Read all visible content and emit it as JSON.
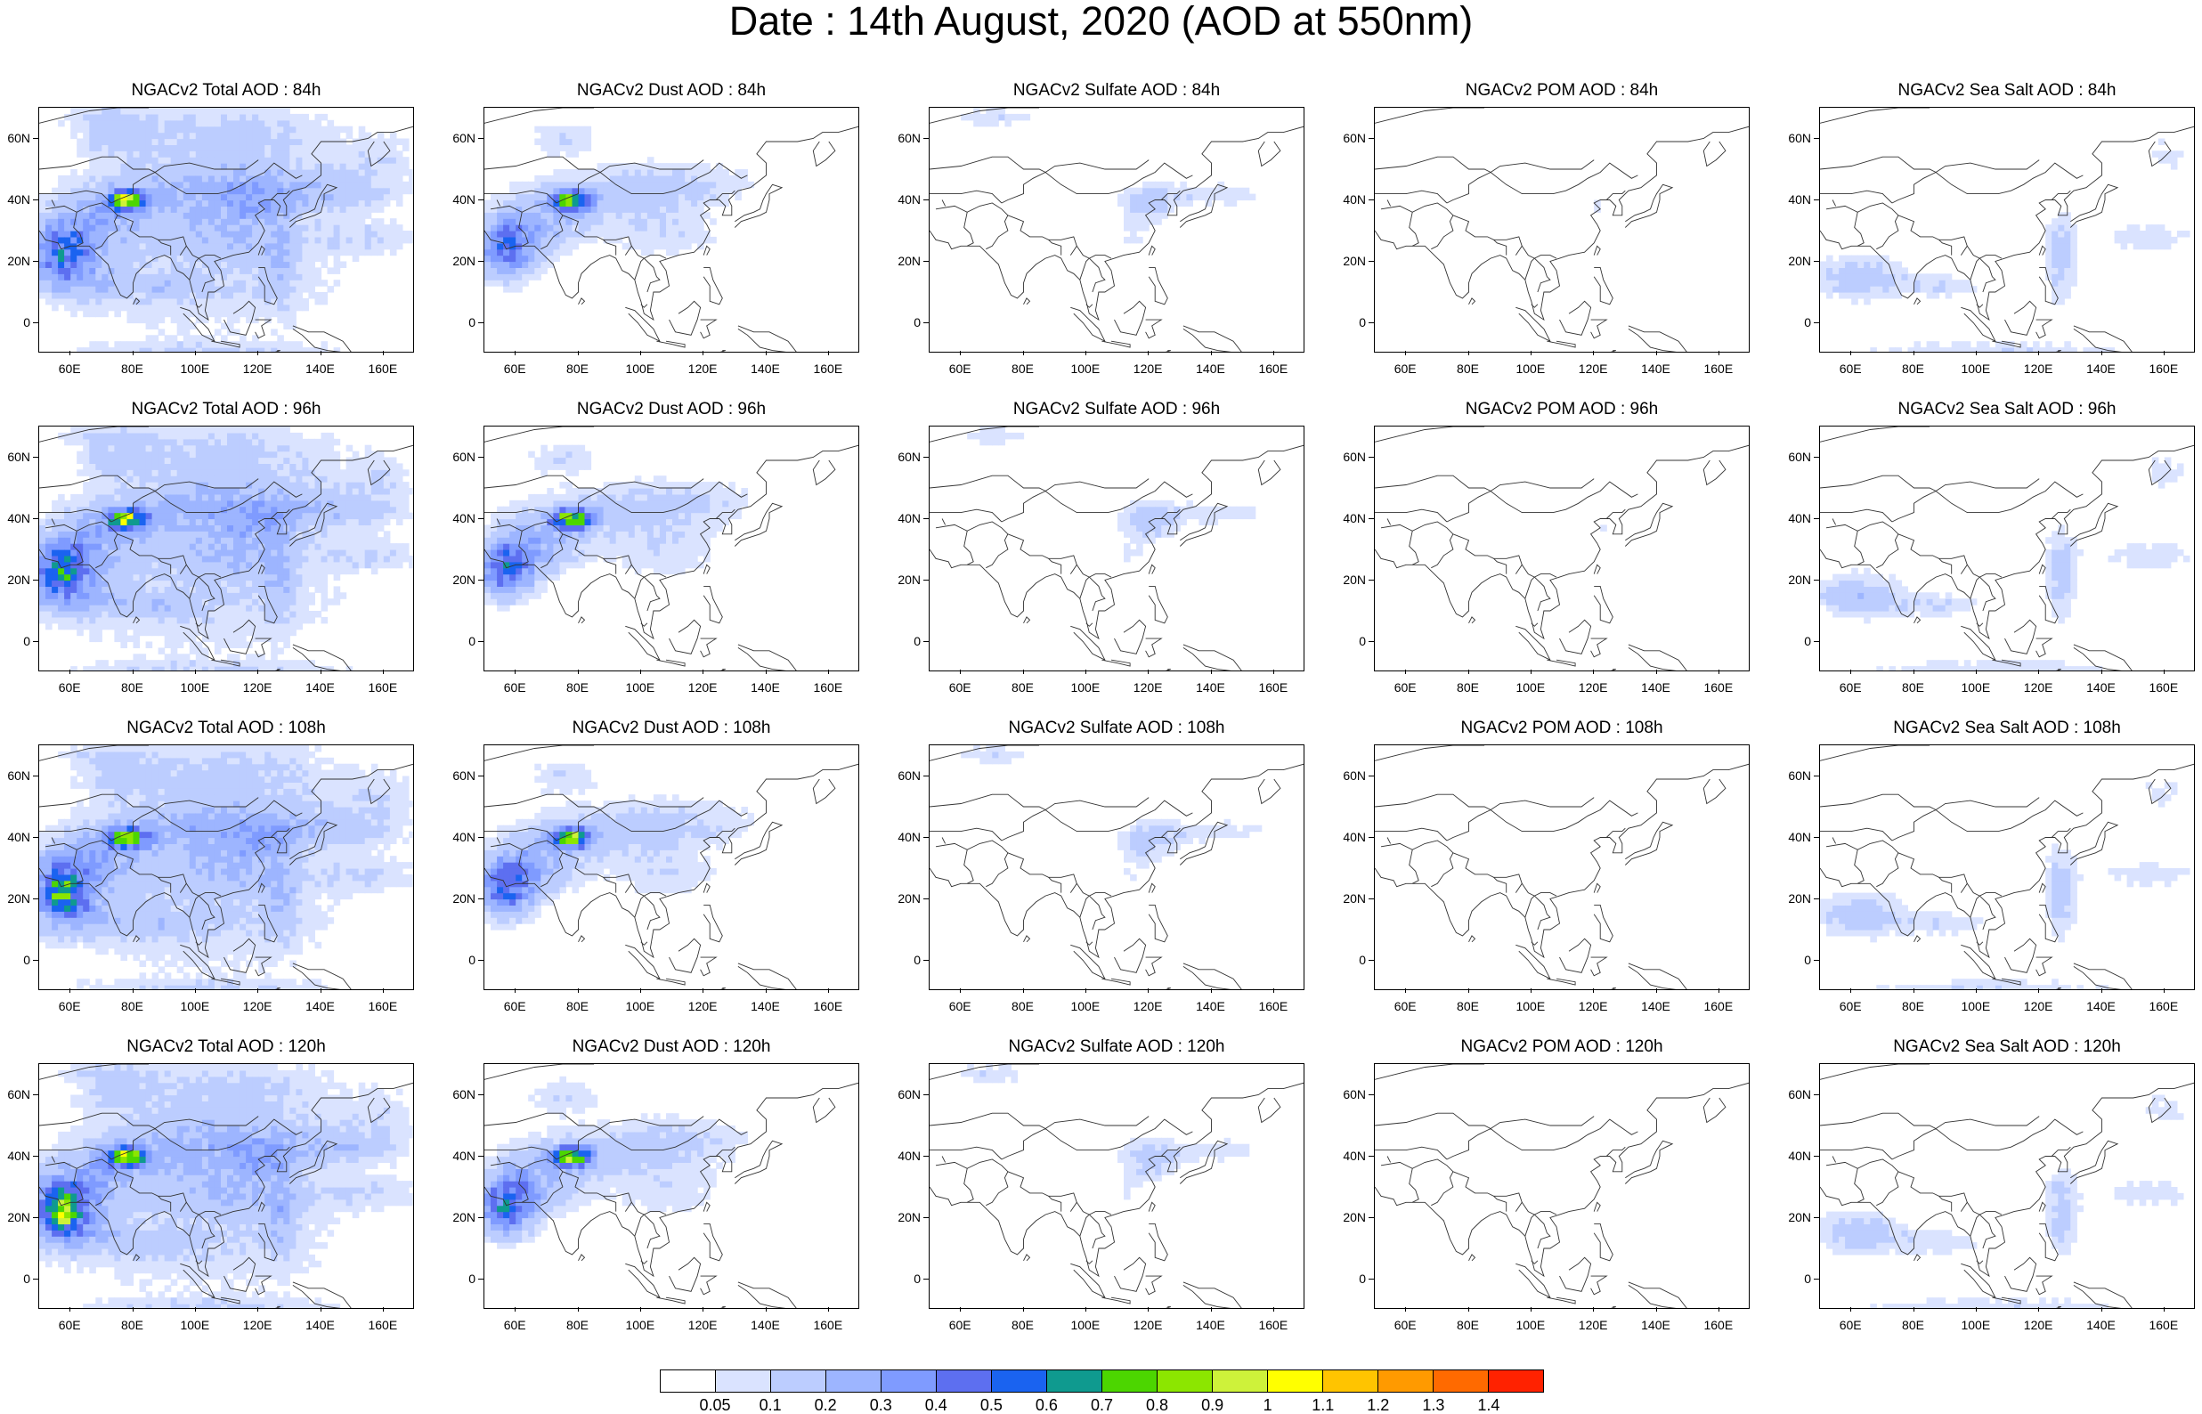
{
  "title": "Date : 14th August, 2020 (AOD at 550nm)",
  "map": {
    "lon_range": [
      50,
      170
    ],
    "lat_range": [
      -10,
      70
    ],
    "x_ticks": [
      "60E",
      "80E",
      "100E",
      "120E",
      "140E",
      "160E"
    ],
    "y_ticks": [
      "60N",
      "40N",
      "20N",
      "0"
    ]
  },
  "panels": [
    {
      "title": "NGACv2 Total AOD : 84h",
      "species": "total",
      "lead": 84
    },
    {
      "title": "NGACv2 Dust AOD : 84h",
      "species": "dust",
      "lead": 84
    },
    {
      "title": "NGACv2 Sulfate AOD : 84h",
      "species": "sulfate",
      "lead": 84
    },
    {
      "title": "NGACv2 POM AOD : 84h",
      "species": "pom",
      "lead": 84
    },
    {
      "title": "NGACv2 Sea Salt AOD : 84h",
      "species": "seasalt",
      "lead": 84
    },
    {
      "title": "NGACv2 Total AOD : 96h",
      "species": "total",
      "lead": 96
    },
    {
      "title": "NGACv2 Dust AOD : 96h",
      "species": "dust",
      "lead": 96
    },
    {
      "title": "NGACv2 Sulfate AOD : 96h",
      "species": "sulfate",
      "lead": 96
    },
    {
      "title": "NGACv2 POM AOD : 96h",
      "species": "pom",
      "lead": 96
    },
    {
      "title": "NGACv2 Sea Salt AOD : 96h",
      "species": "seasalt",
      "lead": 96
    },
    {
      "title": "NGACv2 Total AOD : 108h",
      "species": "total",
      "lead": 108
    },
    {
      "title": "NGACv2 Dust AOD : 108h",
      "species": "dust",
      "lead": 108
    },
    {
      "title": "NGACv2 Sulfate AOD : 108h",
      "species": "sulfate",
      "lead": 108
    },
    {
      "title": "NGACv2 POM AOD : 108h",
      "species": "pom",
      "lead": 108
    },
    {
      "title": "NGACv2 Sea Salt AOD : 108h",
      "species": "seasalt",
      "lead": 108
    },
    {
      "title": "NGACv2 Total AOD : 120h",
      "species": "total",
      "lead": 120
    },
    {
      "title": "NGACv2 Dust AOD : 120h",
      "species": "dust",
      "lead": 120
    },
    {
      "title": "NGACv2 Sulfate AOD : 120h",
      "species": "sulfate",
      "lead": 120
    },
    {
      "title": "NGACv2 POM AOD : 120h",
      "species": "pom",
      "lead": 120
    },
    {
      "title": "NGACv2 Sea Salt  AOD : 120h",
      "species": "seasalt",
      "lead": 120
    }
  ],
  "colorbar": {
    "labels": [
      "0.05",
      "0.1",
      "0.2",
      "0.3",
      "0.4",
      "0.5",
      "0.6",
      "0.7",
      "0.8",
      "0.9",
      "1",
      "1.1",
      "1.2",
      "1.3",
      "1.4"
    ],
    "colors": [
      "#ffffff",
      "#dae3ff",
      "#bccdff",
      "#9db5ff",
      "#7f9bff",
      "#5d6ff0",
      "#1a63f0",
      "#0f9a8f",
      "#4cd600",
      "#8ce600",
      "#cef23a",
      "#ffff00",
      "#ffc400",
      "#ff9a00",
      "#ff6a00",
      "#ff2200"
    ]
  }
}
